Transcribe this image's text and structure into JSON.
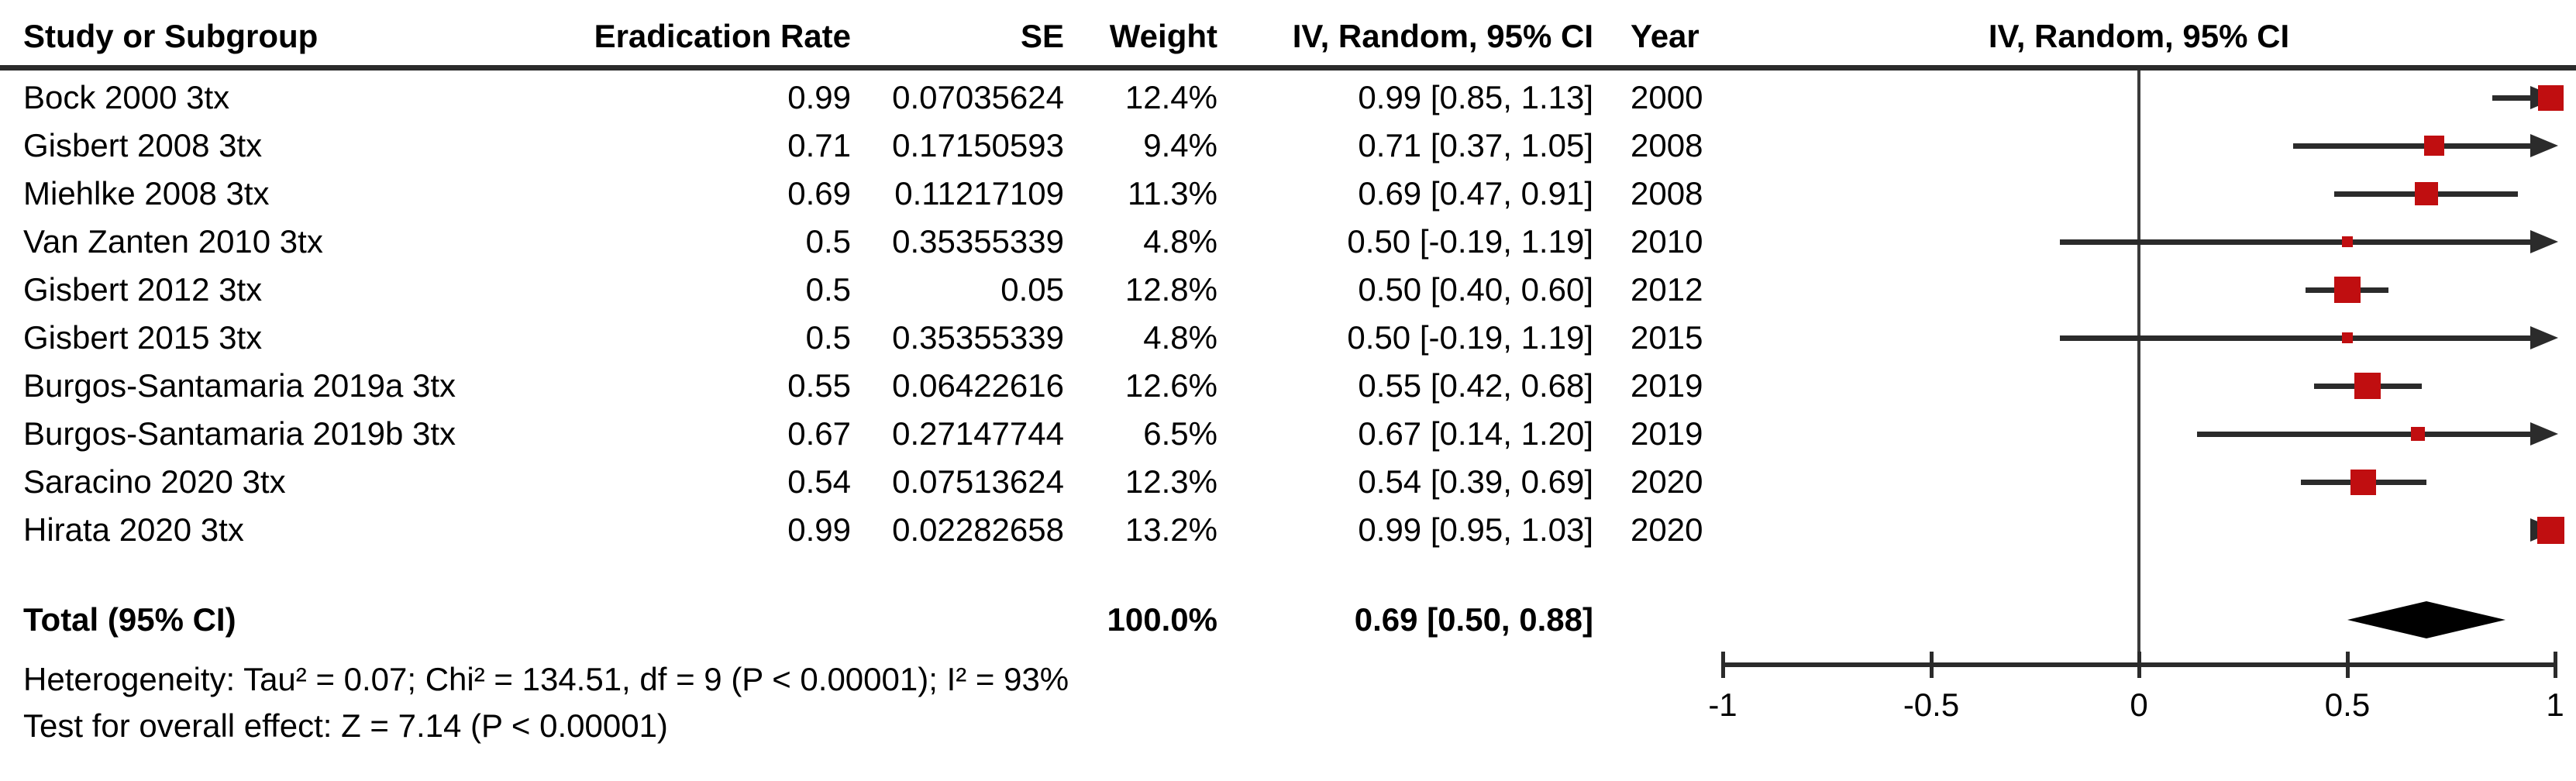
{
  "table": {
    "headers": {
      "study": "Study or Subgroup",
      "rate": "Eradication Rate",
      "se": "SE",
      "weight": "Weight",
      "ci": "IV, Random, 95% CI",
      "year": "Year",
      "plot": "IV, Random, 95% CI"
    }
  },
  "colors": {
    "marker": "#C00E10",
    "diamond": "#000000",
    "line": "#2b2b2b",
    "text": "#000000"
  },
  "chart_data": {
    "type": "forest",
    "xlabel_ticks_note": "effect size scale",
    "axis": {
      "xlim": [
        -1,
        1
      ],
      "ticks": [
        -1,
        -0.5,
        0,
        0.5,
        1
      ],
      "tick_labels": [
        "-1",
        "-0.5",
        "0",
        "0.5",
        "1"
      ]
    },
    "studies": [
      {
        "study": "Bock 2000 3tx",
        "rate": "0.99",
        "se": "0.07035624",
        "weight": "12.4%",
        "ci": "0.99 [0.85, 1.13]",
        "year": "2000",
        "estimate": 0.99,
        "lower": 0.85,
        "upper": 1.13
      },
      {
        "study": "Gisbert 2008 3tx",
        "rate": "0.71",
        "se": "0.17150593",
        "weight": "9.4%",
        "ci": "0.71 [0.37, 1.05]",
        "year": "2008",
        "estimate": 0.71,
        "lower": 0.37,
        "upper": 1.05
      },
      {
        "study": "Miehlke 2008 3tx",
        "rate": "0.69",
        "se": "0.11217109",
        "weight": "11.3%",
        "ci": "0.69 [0.47, 0.91]",
        "year": "2008",
        "estimate": 0.69,
        "lower": 0.47,
        "upper": 0.91
      },
      {
        "study": "Van Zanten 2010 3tx",
        "rate": "0.5",
        "se": "0.35355339",
        "weight": "4.8%",
        "ci": "0.50 [-0.19, 1.19]",
        "year": "2010",
        "estimate": 0.5,
        "lower": -0.19,
        "upper": 1.19
      },
      {
        "study": "Gisbert 2012 3tx",
        "rate": "0.5",
        "se": "0.05",
        "weight": "12.8%",
        "ci": "0.50 [0.40, 0.60]",
        "year": "2012",
        "estimate": 0.5,
        "lower": 0.4,
        "upper": 0.6
      },
      {
        "study": "Gisbert 2015 3tx",
        "rate": "0.5",
        "se": "0.35355339",
        "weight": "4.8%",
        "ci": "0.50 [-0.19, 1.19]",
        "year": "2015",
        "estimate": 0.5,
        "lower": -0.19,
        "upper": 1.19
      },
      {
        "study": "Burgos-Santamaria 2019a 3tx",
        "rate": "0.55",
        "se": "0.06422616",
        "weight": "12.6%",
        "ci": "0.55 [0.42, 0.68]",
        "year": "2019",
        "estimate": 0.55,
        "lower": 0.42,
        "upper": 0.68
      },
      {
        "study": "Burgos-Santamaria 2019b 3tx",
        "rate": "0.67",
        "se": "0.27147744",
        "weight": "6.5%",
        "ci": "0.67 [0.14, 1.20]",
        "year": "2019",
        "estimate": 0.67,
        "lower": 0.14,
        "upper": 1.2
      },
      {
        "study": "Saracino 2020 3tx",
        "rate": "0.54",
        "se": "0.07513624",
        "weight": "12.3%",
        "ci": "0.54 [0.39, 0.69]",
        "year": "2020",
        "estimate": 0.54,
        "lower": 0.39,
        "upper": 0.69
      },
      {
        "study": "Hirata 2020 3tx",
        "rate": "0.99",
        "se": "0.02282658",
        "weight": "13.2%",
        "ci": "0.99 [0.95, 1.03]",
        "year": "2020",
        "estimate": 0.99,
        "lower": 0.95,
        "upper": 1.03
      }
    ],
    "total": {
      "label": "Total (95% CI)",
      "weight": "100.0%",
      "ci": "0.69 [0.50, 0.88]",
      "estimate": 0.69,
      "lower": 0.5,
      "upper": 0.88
    },
    "footer": {
      "heterogeneity": "Heterogeneity: Tau² = 0.07; Chi² = 134.51, df = 9 (P < 0.00001); I² = 93%",
      "overall_effect": "Test for overall effect: Z = 7.14 (P < 0.00001)"
    }
  }
}
